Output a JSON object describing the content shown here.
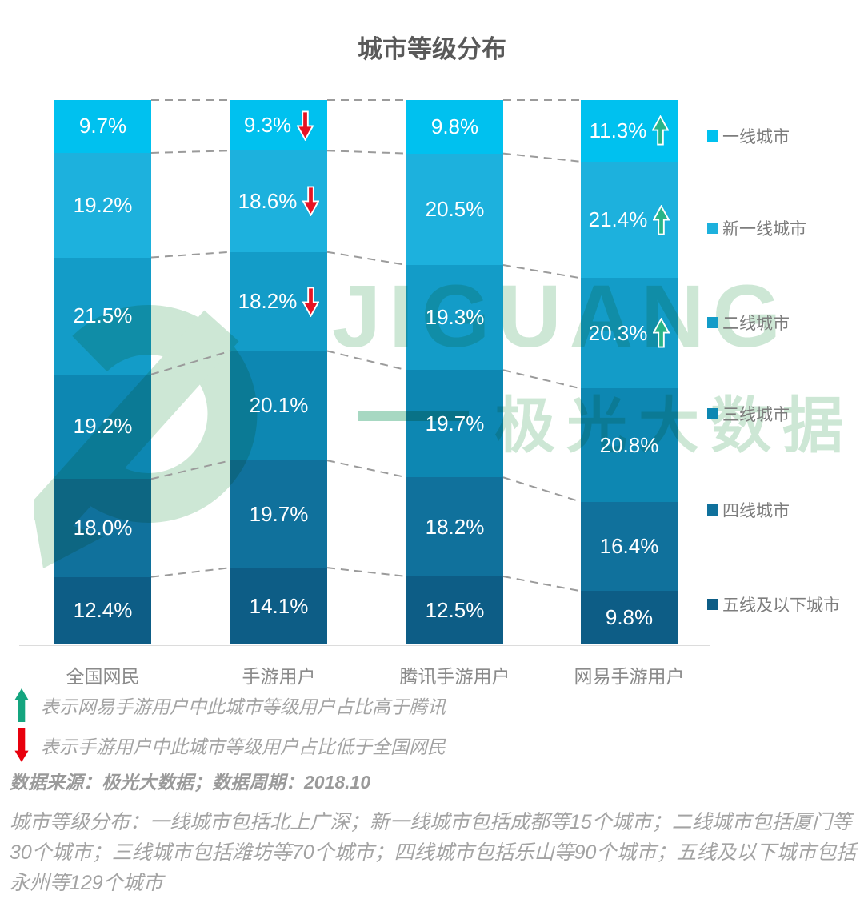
{
  "chart_data": {
    "type": "bar",
    "subtype": "stacked-percent-column",
    "title": "城市等级分布",
    "categories": [
      "全国网民",
      "手游用户",
      "腾讯手游用户",
      "网易手游用户"
    ],
    "series": [
      {
        "name": "一线城市",
        "color": "#00c1ef",
        "values": [
          9.7,
          9.3,
          9.8,
          11.3
        ]
      },
      {
        "name": "新一线城市",
        "color": "#1db1dd",
        "values": [
          19.2,
          18.6,
          20.5,
          21.4
        ]
      },
      {
        "name": "二线城市",
        "color": "#139cc8",
        "values": [
          21.5,
          18.2,
          19.3,
          20.3
        ]
      },
      {
        "name": "三线城市",
        "color": "#0d87b2",
        "values": [
          19.2,
          20.1,
          19.7,
          20.8
        ]
      },
      {
        "name": "四线城市",
        "color": "#10719c",
        "values": [
          18.0,
          19.7,
          18.2,
          16.4
        ]
      },
      {
        "name": "五线及以下城市",
        "color": "#0d5d86",
        "values": [
          12.4,
          14.1,
          12.5,
          9.8
        ]
      }
    ],
    "value_suffix": "%",
    "ylim": [
      0,
      100
    ],
    "legend_position": "right",
    "grid": "dashed-connectors-between-columns",
    "annotations": {
      "down": {
        "category": "手游用户",
        "tiers": [
          "一线城市",
          "新一线城市",
          "二线城市"
        ],
        "color": "#e61323"
      },
      "up": {
        "category": "网易手游用户",
        "tiers": [
          "一线城市",
          "新一线城市",
          "二线城市"
        ],
        "color": "#28b487"
      }
    }
  },
  "notes": {
    "up_note": "表示网易手游用户中此城市等级用户占比高于腾讯",
    "down_note": "表示手游用户中此城市等级用户占比低于全国网民",
    "source": "数据来源：极光大数据；数据周期：2018.10",
    "description": "城市等级分布：一线城市包括北上广深；新一线城市包括成都等15个城市；二线城市包括厦门等30个城市；三线城市包括潍坊等70个城市；四线城市包括乐山等90个城市；五线及以下城市包括永州等129个城市"
  },
  "watermark": {
    "latin": "JIGUANG",
    "chinese": "极光大数据",
    "color": "#cde7d5"
  },
  "colors": {
    "up_arrow": "#14a57f",
    "down_arrow": "#e8000d",
    "title_text": "#595959",
    "axis_text": "#8a8a8a",
    "note_text": "#a3a3a3",
    "dash_line": "#9b9b9b"
  }
}
